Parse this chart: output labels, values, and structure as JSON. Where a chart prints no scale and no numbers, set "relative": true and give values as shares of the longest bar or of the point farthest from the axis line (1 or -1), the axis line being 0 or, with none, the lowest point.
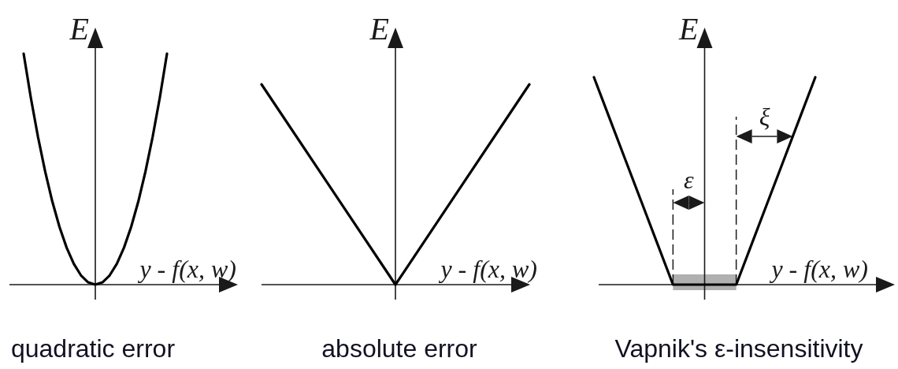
{
  "chart_data": [
    {
      "type": "line",
      "title": "quadratic error",
      "xlabel": "y - f(x, w)",
      "ylabel": "E",
      "relative": true,
      "color": "#000000",
      "categories": [
        null,
        null,
        null,
        null,
        null,
        null,
        null,
        null,
        null,
        null,
        null,
        null,
        null,
        null,
        null,
        null,
        null,
        null,
        null,
        null,
        null
      ],
      "values": [
        1,
        0.81,
        0.64,
        0.49,
        0.36,
        0.25,
        0.16,
        0.09,
        0.04,
        0.01,
        0,
        0.01,
        0.04,
        0.09,
        0.16,
        0.25,
        0.36,
        0.49,
        0.64,
        0.81,
        1
      ]
    },
    {
      "type": "line",
      "title": "absolute error",
      "xlabel": "y - f(x, w)",
      "ylabel": "E",
      "relative": true,
      "color": "#000000",
      "categories": [
        null,
        null,
        null
      ],
      "values": [
        1,
        0,
        1
      ]
    },
    {
      "type": "line",
      "title": "Vapnik's ε-insensitivity",
      "xlabel": "y - f(x, w)",
      "ylabel": "E",
      "relative": true,
      "color": "#000000",
      "categories": [
        null,
        null,
        null,
        null,
        null,
        null,
        null,
        null,
        null,
        null,
        null,
        null,
        null,
        null,
        null
      ],
      "values": [
        1,
        0.8,
        0.6,
        0.4,
        0.2,
        0,
        0,
        0,
        0,
        0,
        0.2,
        0.4,
        0.6,
        0.8,
        1
      ],
      "annotations": [
        "ε",
        "ξ"
      ]
    }
  ]
}
